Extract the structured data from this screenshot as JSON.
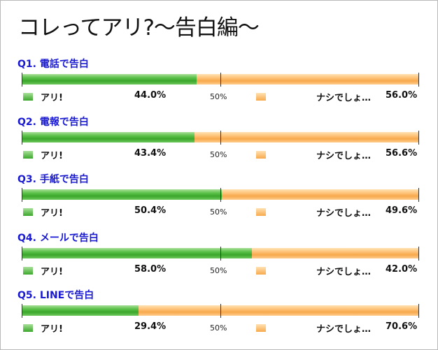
{
  "page_title": "コレってアリ?～告白編～",
  "legend": {
    "yes": "アリ!",
    "no": "ナシでしょ…",
    "midpoint": "50%"
  },
  "colors": {
    "yes": "#4cb53b",
    "no": "#f9b25c",
    "title": "#1a1ad0"
  },
  "chart_data": [
    {
      "type": "bar",
      "title": "Q1. 電話で告白",
      "categories": [
        "アリ!",
        "ナシでしょ…"
      ],
      "values": [
        44.0,
        56.0
      ],
      "labels": [
        "44.0%",
        "56.0%"
      ]
    },
    {
      "type": "bar",
      "title": "Q2. 電報で告白",
      "categories": [
        "アリ!",
        "ナシでしょ…"
      ],
      "values": [
        43.4,
        56.6
      ],
      "labels": [
        "43.4%",
        "56.6%"
      ]
    },
    {
      "type": "bar",
      "title": "Q3. 手紙で告白",
      "categories": [
        "アリ!",
        "ナシでしょ…"
      ],
      "values": [
        50.4,
        49.6
      ],
      "labels": [
        "50.4%",
        "49.6%"
      ]
    },
    {
      "type": "bar",
      "title": "Q4. メールで告白",
      "categories": [
        "アリ!",
        "ナシでしょ…"
      ],
      "values": [
        58.0,
        42.0
      ],
      "labels": [
        "58.0%",
        "42.0%"
      ]
    },
    {
      "type": "bar",
      "title": "Q5. LINEで告白",
      "categories": [
        "アリ!",
        "ナシでしょ…"
      ],
      "values": [
        29.4,
        70.6
      ],
      "labels": [
        "29.4%",
        "70.6%"
      ]
    }
  ]
}
